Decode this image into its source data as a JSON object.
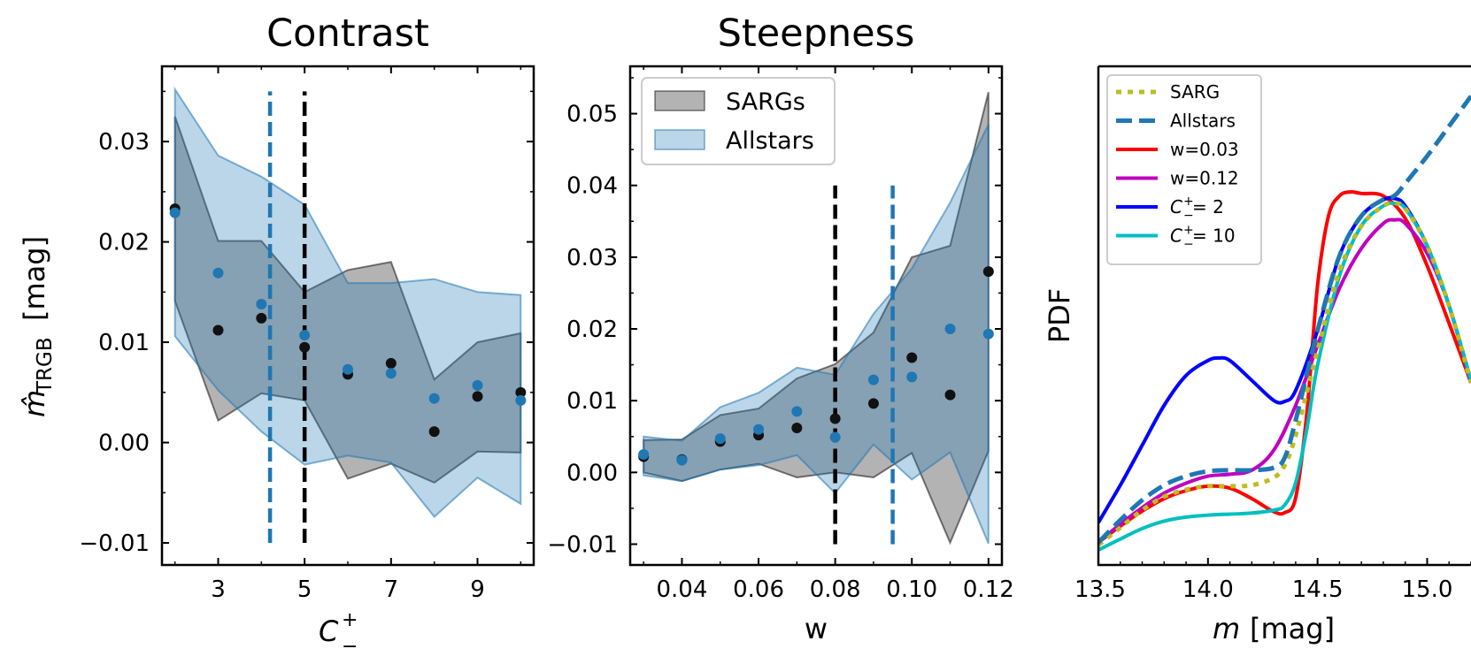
{
  "chart_data": [
    {
      "type": "scatter",
      "title": "Contrast",
      "xlabel": "C",
      "xlabel_sup": "+",
      "xlabel_sub": "−",
      "ylabel": "m̂",
      "ylabel_sub": "TRGB",
      "ylabel_unit": "[mag]",
      "xlim": [
        1.7,
        10.3
      ],
      "ylim": [
        -0.0122,
        0.0375
      ],
      "xticks": [
        3,
        5,
        7,
        9
      ],
      "xtick_labels": [
        "3",
        "5",
        "7",
        "9"
      ],
      "yticks": [
        -0.01,
        0.0,
        0.01,
        0.02,
        0.03
      ],
      "ytick_labels": [
        "−0.01",
        "0.00",
        "0.01",
        "0.02",
        "0.03"
      ],
      "series": [
        {
          "name": "SARGs",
          "color": "#000000",
          "x": [
            2,
            3,
            4,
            5,
            6,
            7,
            8,
            9,
            10
          ],
          "points": [
            0.0233,
            0.0112,
            0.0124,
            0.0095,
            0.0068,
            0.0079,
            0.0011,
            0.0046,
            0.005
          ],
          "upper": [
            0.0325,
            0.0201,
            0.0201,
            0.015,
            0.0172,
            0.018,
            0.0063,
            0.01,
            0.0109
          ],
          "lower": [
            0.0141,
            0.0022,
            0.0049,
            0.0042,
            -0.0036,
            -0.0021,
            -0.004,
            -0.0009,
            -0.001
          ]
        },
        {
          "name": "Allstars",
          "color": "#1f77b4",
          "x": [
            2,
            3,
            4,
            5,
            6,
            7,
            8,
            9,
            10
          ],
          "points": [
            0.0229,
            0.0169,
            0.0138,
            0.0107,
            0.0073,
            0.0069,
            0.0044,
            0.0057,
            0.0042
          ],
          "upper": [
            0.0352,
            0.0286,
            0.0265,
            0.0237,
            0.0159,
            0.0159,
            0.0163,
            0.015,
            0.0147
          ],
          "lower": [
            0.0106,
            0.0052,
            0.0011,
            -0.0022,
            -0.0013,
            -0.002,
            -0.0074,
            -0.0035,
            -0.0061
          ]
        }
      ],
      "vlines": [
        {
          "x": 4.2,
          "color": "#1f77b4",
          "y_from": -0.01,
          "y_to": 0.035
        },
        {
          "x": 5.0,
          "color": "#000000",
          "y_from": -0.01,
          "y_to": 0.035
        }
      ]
    },
    {
      "type": "scatter",
      "title": "Steepness",
      "xlabel": "w",
      "xlim": [
        0.0265,
        0.1235
      ],
      "ylim": [
        -0.0129,
        0.0566
      ],
      "xticks": [
        0.04,
        0.06,
        0.08,
        0.1,
        0.12
      ],
      "xtick_labels": [
        "0.04",
        "0.06",
        "0.08",
        "0.10",
        "0.12"
      ],
      "yticks": [
        -0.01,
        0.0,
        0.01,
        0.02,
        0.03,
        0.04,
        0.05
      ],
      "ytick_labels": [
        "−0.01",
        "0.00",
        "0.01",
        "0.02",
        "0.03",
        "0.04",
        "0.05"
      ],
      "legend": {
        "location": "upper left",
        "entries": [
          "SARGs",
          "Allstars"
        ]
      },
      "series": [
        {
          "name": "SARGs",
          "color": "#000000",
          "x": [
            0.03,
            0.04,
            0.05,
            0.06,
            0.07,
            0.08,
            0.09,
            0.1,
            0.11,
            0.12
          ],
          "points": [
            0.0022,
            0.0018,
            0.0043,
            0.0052,
            0.0062,
            0.0075,
            0.0096,
            0.016,
            0.0108,
            0.028
          ],
          "upper": [
            0.0045,
            0.0046,
            0.008,
            0.0089,
            0.0131,
            0.0151,
            0.0195,
            0.03,
            0.0316,
            0.053
          ],
          "lower": [
            0.0,
            -0.0012,
            0.0004,
            0.0012,
            -0.0007,
            0.0,
            -0.0007,
            0.0027,
            -0.0098,
            0.003
          ]
        },
        {
          "name": "Allstars",
          "color": "#1f77b4",
          "x": [
            0.03,
            0.04,
            0.05,
            0.06,
            0.07,
            0.08,
            0.09,
            0.1,
            0.11,
            0.12
          ],
          "points": [
            0.0025,
            0.0017,
            0.0047,
            0.006,
            0.0085,
            0.0049,
            0.0129,
            0.0133,
            0.02,
            0.0193
          ],
          "upper": [
            0.005,
            0.0044,
            0.0091,
            0.0111,
            0.0146,
            0.0136,
            0.0221,
            0.0284,
            0.0376,
            0.0485
          ],
          "lower": [
            -0.0004,
            -0.0012,
            0.0004,
            0.001,
            0.0024,
            -0.0029,
            0.0039,
            -0.001,
            0.0028,
            -0.0099
          ]
        }
      ],
      "vlines": [
        {
          "x": 0.08,
          "color": "#000000",
          "y_from": -0.01,
          "y_to": 0.04
        },
        {
          "x": 0.095,
          "color": "#1f77b4",
          "y_from": -0.01,
          "y_to": 0.04
        }
      ]
    },
    {
      "type": "line",
      "title": "",
      "xlabel": "m",
      "xlabel_unit": "[mag]",
      "ylabel": "PDF",
      "xlim": [
        13.5,
        15.2
      ],
      "ylim": [
        0.0,
        1.0
      ],
      "xticks": [
        13.5,
        14.0,
        14.5,
        15.0
      ],
      "xtick_labels": [
        "13.5",
        "14.0",
        "14.5",
        "15.0"
      ],
      "legend": {
        "location": "upper left"
      },
      "series": [
        {
          "name": "w=0.03",
          "label": "w=0.03",
          "color": "#ff0000",
          "style": "solid",
          "x": [
            13.5,
            13.6,
            13.7,
            13.8,
            13.9,
            14.0,
            14.1,
            14.2,
            14.3,
            14.35,
            14.4,
            14.45,
            14.5,
            14.55,
            14.6,
            14.65,
            14.7,
            14.8,
            14.9,
            15.0,
            15.1,
            15.2
          ],
          "y": [
            0.045,
            0.078,
            0.108,
            0.133,
            0.149,
            0.158,
            0.154,
            0.133,
            0.107,
            0.105,
            0.135,
            0.3,
            0.56,
            0.7,
            0.74,
            0.748,
            0.745,
            0.74,
            0.695,
            0.6,
            0.485,
            0.365
          ]
        },
        {
          "name": "w=0.12",
          "label": "w=0.12",
          "color": "#bf00bf",
          "style": "solid",
          "x": [
            13.5,
            13.6,
            13.7,
            13.8,
            13.9,
            14.0,
            14.1,
            14.2,
            14.3,
            14.4,
            14.5,
            14.6,
            14.7,
            14.8,
            14.85,
            14.9,
            15.0,
            15.1,
            15.2
          ],
          "y": [
            0.045,
            0.082,
            0.115,
            0.144,
            0.164,
            0.178,
            0.182,
            0.19,
            0.23,
            0.32,
            0.44,
            0.555,
            0.635,
            0.685,
            0.692,
            0.685,
            0.625,
            0.52,
            0.365
          ]
        },
        {
          "name": "C=2",
          "label": "C=2",
          "color": "#0000ff",
          "style": "solid",
          "x": [
            13.5,
            13.6,
            13.7,
            13.8,
            13.9,
            14.0,
            14.05,
            14.1,
            14.2,
            14.3,
            14.35,
            14.4,
            14.5,
            14.6,
            14.7,
            14.8,
            14.85,
            14.9,
            15.0,
            15.1,
            15.2
          ],
          "y": [
            0.085,
            0.16,
            0.24,
            0.32,
            0.38,
            0.41,
            0.415,
            0.41,
            0.37,
            0.33,
            0.328,
            0.35,
            0.47,
            0.62,
            0.7,
            0.732,
            0.735,
            0.72,
            0.64,
            0.52,
            0.37
          ]
        },
        {
          "name": "C=10",
          "label": "C=10",
          "color": "#00bfbf",
          "style": "solid",
          "x": [
            13.5,
            13.6,
            13.7,
            13.8,
            13.9,
            14.0,
            14.1,
            14.2,
            14.3,
            14.35,
            14.4,
            14.45,
            14.5,
            14.6,
            14.7,
            14.8,
            14.85,
            14.9,
            15.0,
            15.1,
            15.2
          ],
          "y": [
            0.03,
            0.052,
            0.073,
            0.088,
            0.096,
            0.1,
            0.102,
            0.104,
            0.11,
            0.12,
            0.165,
            0.27,
            0.4,
            0.58,
            0.68,
            0.72,
            0.725,
            0.715,
            0.64,
            0.52,
            0.37
          ]
        },
        {
          "name": "SARG",
          "label": "SARG",
          "color": "#bcbd22",
          "style": "dotted",
          "x": [
            13.5,
            13.6,
            13.7,
            13.8,
            13.9,
            14.0,
            14.1,
            14.2,
            14.3,
            14.35,
            14.4,
            14.5,
            14.6,
            14.7,
            14.8,
            14.85,
            14.9,
            15.0,
            15.1,
            15.2
          ],
          "y": [
            0.04,
            0.075,
            0.11,
            0.137,
            0.151,
            0.158,
            0.158,
            0.16,
            0.175,
            0.2,
            0.26,
            0.43,
            0.59,
            0.68,
            0.72,
            0.725,
            0.715,
            0.64,
            0.52,
            0.365
          ]
        },
        {
          "name": "Allstars",
          "label": "Allstars",
          "color": "#1f77b4",
          "style": "dashed",
          "x": [
            13.5,
            13.6,
            13.7,
            13.8,
            13.9,
            14.0,
            14.1,
            14.2,
            14.3,
            14.35,
            14.4,
            14.5,
            14.6,
            14.7,
            14.8,
            14.85,
            14.9,
            15.0,
            15.1,
            15.2
          ],
          "y": [
            0.045,
            0.09,
            0.13,
            0.16,
            0.178,
            0.188,
            0.19,
            0.19,
            0.195,
            0.215,
            0.29,
            0.47,
            0.62,
            0.7,
            0.733,
            0.74,
            0.765,
            0.82,
            0.88,
            0.94
          ]
        }
      ],
      "legend_entries": [
        {
          "series": "SARG",
          "text": "SARG"
        },
        {
          "series": "Allstars",
          "text": "Allstars"
        },
        {
          "series": "w=0.03",
          "text": "w=0.03"
        },
        {
          "series": "w=0.12",
          "text": "w=0.12"
        },
        {
          "series": "C=2",
          "text": "C",
          "sup": "+",
          "sub": "−",
          "rest": " = 2"
        },
        {
          "series": "C=10",
          "text": "C",
          "sup": "+",
          "sub": "−",
          "rest": " = 10"
        }
      ]
    }
  ]
}
